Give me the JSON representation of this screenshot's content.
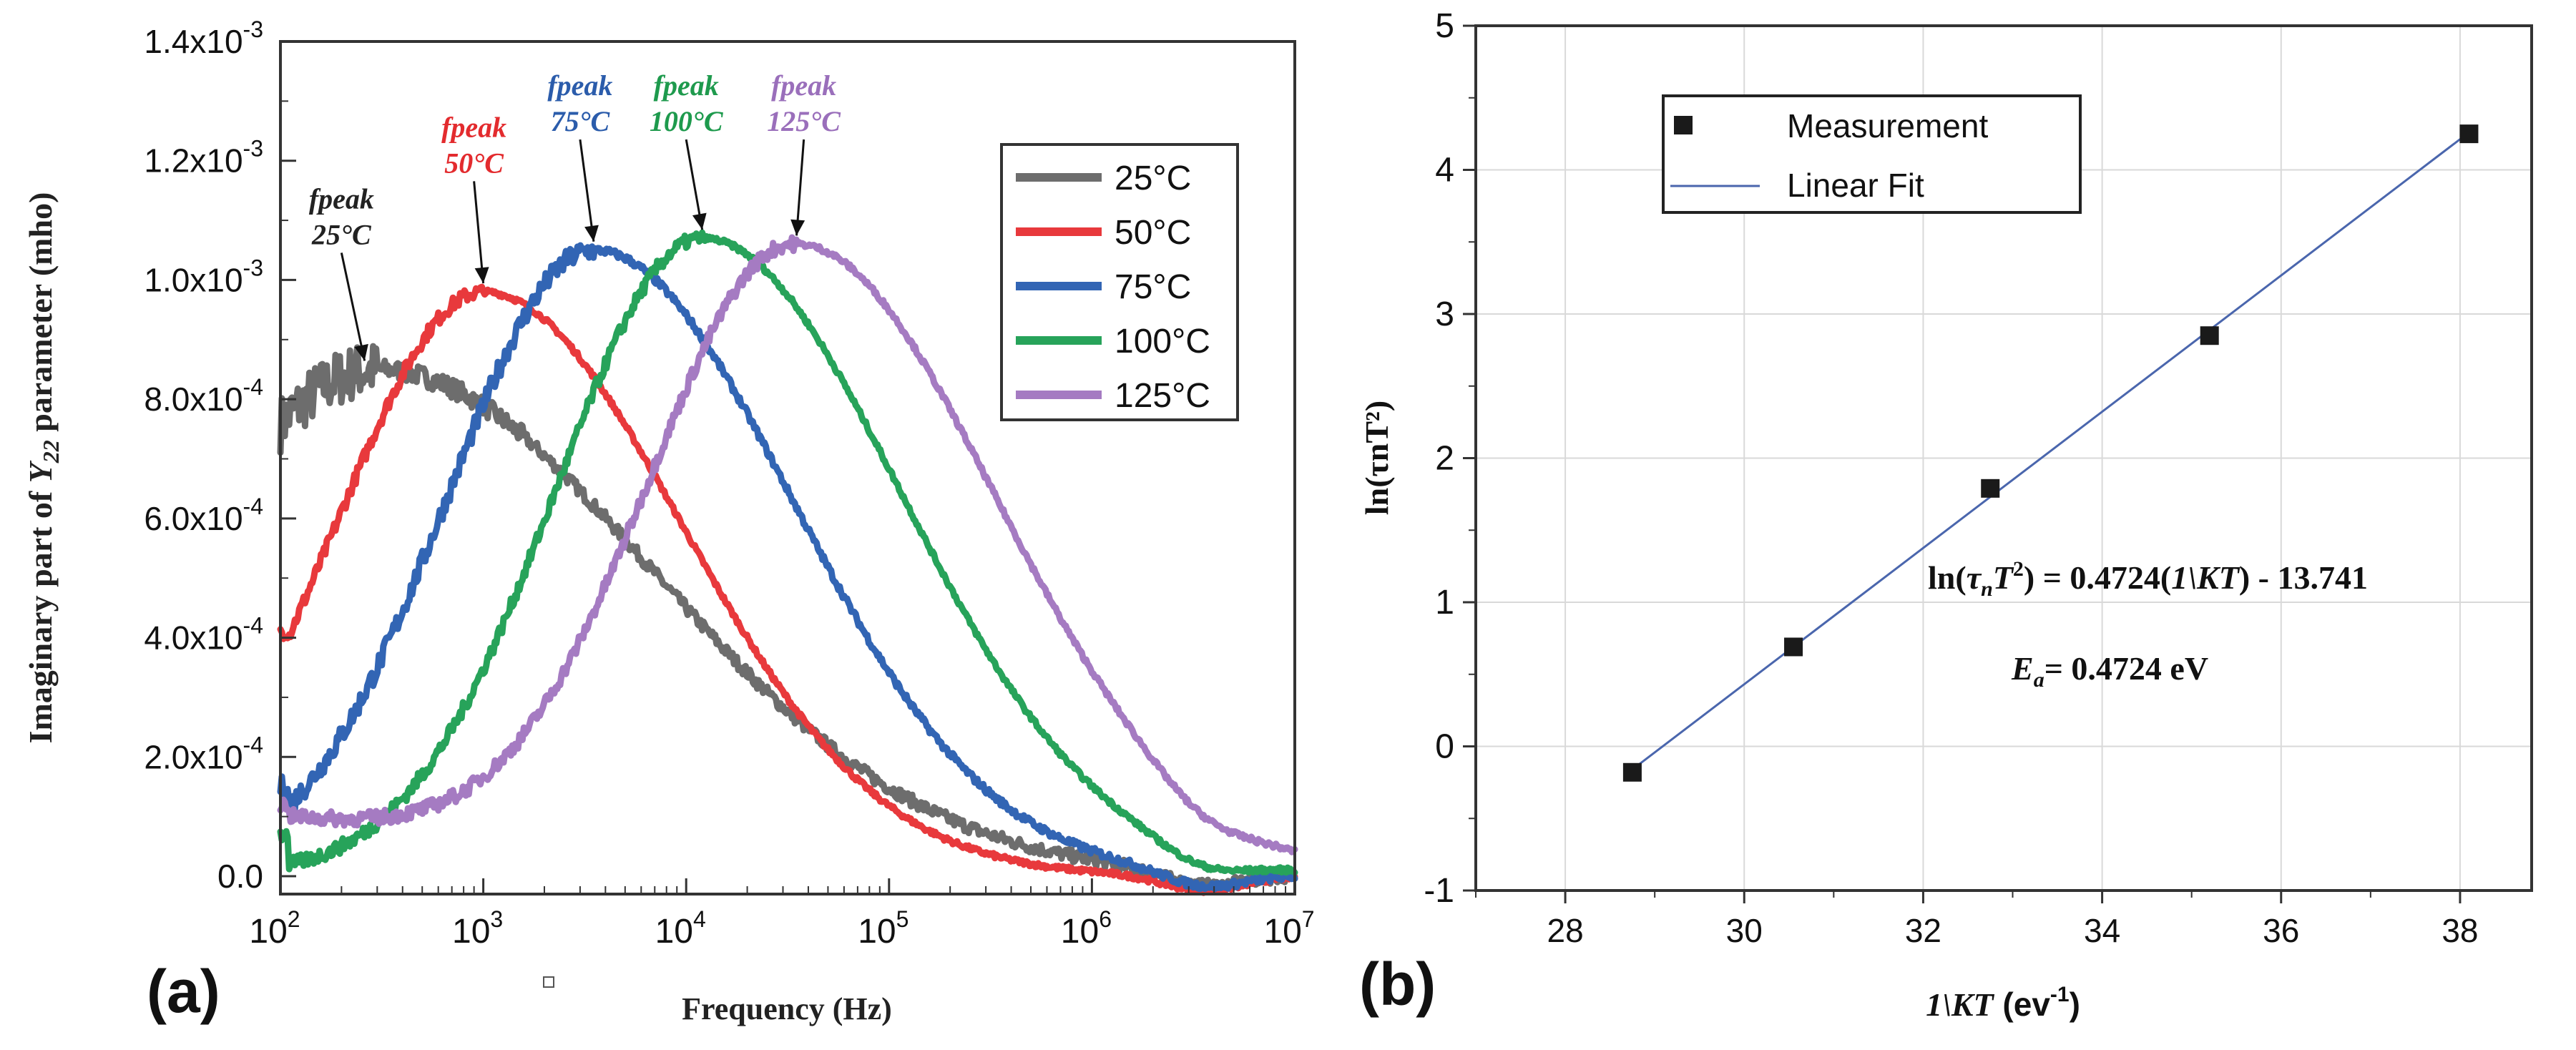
{
  "chart_data": [
    {
      "panel_label": "(a)",
      "type": "line",
      "title": "",
      "xlabel": "Frequency (Hz)",
      "ylabel_prefix": "Imaginary part of ",
      "ylabel_symbol": "Y",
      "ylabel_subscript": "22",
      "ylabel_suffix": " parameter (mho)",
      "xscale": "log",
      "xlim": [
        100,
        10000000
      ],
      "ylim": [
        -3e-05,
        0.0014
      ],
      "x_ticks": [
        {
          "base": "10",
          "exp": "2"
        },
        {
          "base": "10",
          "exp": "3"
        },
        {
          "base": "10",
          "exp": "4"
        },
        {
          "base": "10",
          "exp": "5"
        },
        {
          "base": "10",
          "exp": "6"
        },
        {
          "base": "10",
          "exp": "7"
        }
      ],
      "y_ticks": [
        {
          "value": 0.0,
          "label": "0.0",
          "exp": ""
        },
        {
          "value": 0.0002,
          "label": "2.0x10",
          "exp": "-4"
        },
        {
          "value": 0.0004,
          "label": "4.0x10",
          "exp": "-4"
        },
        {
          "value": 0.0006,
          "label": "6.0x10",
          "exp": "-4"
        },
        {
          "value": 0.0008,
          "label": "8.0x10",
          "exp": "-4"
        },
        {
          "value": 0.001,
          "label": "1.0x10",
          "exp": "-3"
        },
        {
          "value": 0.0012,
          "label": "1.2x10",
          "exp": "-3"
        },
        {
          "value": 0.0014,
          "label": "1.4x10",
          "exp": "-3"
        }
      ],
      "legend_position": "top-right",
      "series": [
        {
          "name": "25°C",
          "color": "#6d6d6d",
          "peak_freq": 300,
          "peak_value": 0.00085,
          "width": 1.0,
          "start_value": 0.00072,
          "start_plateau": 0,
          "tail_value": 5e-05,
          "noise": 3e-05
        },
        {
          "name": "50°C",
          "color": "#e8393c",
          "peak_freq": 1000,
          "peak_value": 0.00098,
          "width": 0.72,
          "start_value": 0.00041,
          "start_plateau": 0,
          "tail_value": 0.0,
          "noise": 1.2e-05
        },
        {
          "name": "75°C",
          "color": "#3265b4",
          "peak_freq": 3500,
          "peak_value": 0.00105,
          "width": 0.72,
          "start_value": 0.00015,
          "start_plateau": 0,
          "tail_value": 0.0,
          "noise": 1.8e-05
        },
        {
          "name": "100°C",
          "color": "#27a35a",
          "peak_freq": 12000,
          "peak_value": 0.00107,
          "width": 0.72,
          "start_value": 7e-05,
          "start_plateau": 0,
          "tail_value": 0.0,
          "noise": 1.2e-05
        },
        {
          "name": "125°C",
          "color": "#a57bc2",
          "peak_freq": 35000,
          "peak_value": 0.00106,
          "width": 0.72,
          "start_value": 0.00012,
          "start_plateau": 0.0001,
          "tail_value": 0.0,
          "noise": 1.2e-05
        }
      ],
      "annotations": [
        {
          "line1": "fpeak",
          "line2": "25°C",
          "color": "#222222",
          "target_freq": 260,
          "target_value": 0.00085,
          "text_freq": 200,
          "text_value": 0.00112
        },
        {
          "line1": "fpeak",
          "line2": "50°C",
          "color": "#e32b2e",
          "target_freq": 1000,
          "target_value": 0.00098,
          "text_freq": 900,
          "text_value": 0.00124
        },
        {
          "line1": "fpeak",
          "line2": "75°C",
          "color": "#2b5cab",
          "target_freq": 3500,
          "target_value": 0.00105,
          "text_freq": 3000,
          "text_value": 0.00131
        },
        {
          "line1": "fpeak",
          "line2": "100°C",
          "color": "#1e9a4d",
          "target_freq": 12000,
          "target_value": 0.00107,
          "text_freq": 10000,
          "text_value": 0.00131
        },
        {
          "line1": "fpeak",
          "line2": "125°C",
          "color": "#9a6fbb",
          "target_freq": 35000,
          "target_value": 0.00106,
          "text_freq": 38000,
          "text_value": 0.00131
        }
      ]
    },
    {
      "panel_label": "(b)",
      "type": "scatter",
      "title": "",
      "xlabel_italic": "1\\KT",
      "xlabel_unit": " (ev",
      "xlabel_unit_exp": "-1",
      "xlabel_unit_end": ")",
      "ylabel": "ln(τnT²)",
      "xlim": [
        27,
        38.8
      ],
      "ylim": [
        -1,
        5
      ],
      "x_ticks": [
        28,
        30,
        32,
        34,
        36,
        38
      ],
      "y_ticks": [
        -1,
        0,
        1,
        2,
        3,
        4,
        5
      ],
      "grid": true,
      "legend_position": "top-left",
      "series": [
        {
          "name": "Measurement",
          "kind": "scatter",
          "color": "#1a1a1a",
          "x": [
            28.75,
            30.55,
            32.75,
            35.2,
            38.1
          ],
          "y": [
            -0.18,
            0.69,
            1.79,
            2.85,
            4.25
          ]
        },
        {
          "name": "Linear Fit",
          "kind": "line",
          "color": "#4a66ad",
          "x": [
            28.75,
            38.1
          ],
          "y": [
            -0.16,
            4.26
          ]
        }
      ],
      "equation_prefix": "ln(",
      "equation_tau": "τ",
      "equation_tau_sub": "n",
      "equation_T": "T",
      "equation_T_exp": "2",
      "equation_rest": ") = 0.4724(",
      "equation_italic_var": "1\\KT",
      "equation_end": ") - 13.741",
      "activation_symbol": "E",
      "activation_sub": "a",
      "activation_value": "= 0.4724 eV"
    }
  ]
}
